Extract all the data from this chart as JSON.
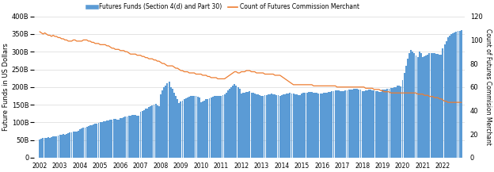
{
  "legend_labels": [
    "Futures Funds (Section 4(d) and Part 30)",
    "Count of Futures Commission Merchant"
  ],
  "bar_color": "#5b9bd5",
  "line_color": "#ed7d31",
  "ylabel_left": "Future Funds in US Dollars",
  "ylabel_right": "Count of Futures Commision Merchant",
  "ylim_left": [
    0,
    400
  ],
  "ylim_right": [
    0,
    120
  ],
  "yticks_left": [
    0,
    50,
    100,
    150,
    200,
    250,
    300,
    350,
    400
  ],
  "ytick_labels_left": [
    "0",
    "50B",
    "100B",
    "150B",
    "200B",
    "250B",
    "300B",
    "350B",
    "400B"
  ],
  "yticks_right": [
    0,
    20,
    40,
    60,
    80,
    100,
    120
  ],
  "background_color": "#ffffff",
  "grid_color": "#d9d9d9",
  "xtick_years": [
    2002,
    2003,
    2004,
    2005,
    2006,
    2007,
    2008,
    2009,
    2010,
    2011,
    2012,
    2013,
    2014,
    2015,
    2016,
    2017,
    2018,
    2019,
    2020,
    2021,
    2022
  ],
  "monthly_bar_x": [
    2002.0,
    2002.083,
    2002.167,
    2002.25,
    2002.333,
    2002.417,
    2002.5,
    2002.583,
    2002.667,
    2002.75,
    2002.833,
    2002.917,
    2003.0,
    2003.083,
    2003.167,
    2003.25,
    2003.333,
    2003.417,
    2003.5,
    2003.583,
    2003.667,
    2003.75,
    2003.833,
    2003.917,
    2004.0,
    2004.083,
    2004.167,
    2004.25,
    2004.333,
    2004.417,
    2004.5,
    2004.583,
    2004.667,
    2004.75,
    2004.833,
    2004.917,
    2005.0,
    2005.083,
    2005.167,
    2005.25,
    2005.333,
    2005.417,
    2005.5,
    2005.583,
    2005.667,
    2005.75,
    2005.833,
    2005.917,
    2006.0,
    2006.083,
    2006.167,
    2006.25,
    2006.333,
    2006.417,
    2006.5,
    2006.583,
    2006.667,
    2006.75,
    2006.833,
    2006.917,
    2007.0,
    2007.083,
    2007.167,
    2007.25,
    2007.333,
    2007.417,
    2007.5,
    2007.583,
    2007.667,
    2007.75,
    2007.833,
    2007.917,
    2008.0,
    2008.083,
    2008.167,
    2008.25,
    2008.333,
    2008.417,
    2008.5,
    2008.583,
    2008.667,
    2008.75,
    2008.833,
    2008.917,
    2009.0,
    2009.083,
    2009.167,
    2009.25,
    2009.333,
    2009.417,
    2009.5,
    2009.583,
    2009.667,
    2009.75,
    2009.833,
    2009.917,
    2010.0,
    2010.083,
    2010.167,
    2010.25,
    2010.333,
    2010.417,
    2010.5,
    2010.583,
    2010.667,
    2010.75,
    2010.833,
    2010.917,
    2011.0,
    2011.083,
    2011.167,
    2011.25,
    2011.333,
    2011.417,
    2011.5,
    2011.583,
    2011.667,
    2011.75,
    2011.833,
    2011.917,
    2012.0,
    2012.083,
    2012.167,
    2012.25,
    2012.333,
    2012.417,
    2012.5,
    2012.583,
    2012.667,
    2012.75,
    2012.833,
    2012.917,
    2013.0,
    2013.083,
    2013.167,
    2013.25,
    2013.333,
    2013.417,
    2013.5,
    2013.583,
    2013.667,
    2013.75,
    2013.833,
    2013.917,
    2014.0,
    2014.083,
    2014.167,
    2014.25,
    2014.333,
    2014.417,
    2014.5,
    2014.583,
    2014.667,
    2014.75,
    2014.833,
    2014.917,
    2015.0,
    2015.083,
    2015.167,
    2015.25,
    2015.333,
    2015.417,
    2015.5,
    2015.583,
    2015.667,
    2015.75,
    2015.833,
    2015.917,
    2016.0,
    2016.083,
    2016.167,
    2016.25,
    2016.333,
    2016.417,
    2016.5,
    2016.583,
    2016.667,
    2016.75,
    2016.833,
    2016.917,
    2017.0,
    2017.083,
    2017.167,
    2017.25,
    2017.333,
    2017.417,
    2017.5,
    2017.583,
    2017.667,
    2017.75,
    2017.833,
    2017.917,
    2018.0,
    2018.083,
    2018.167,
    2018.25,
    2018.333,
    2018.417,
    2018.5,
    2018.583,
    2018.667,
    2018.75,
    2018.833,
    2018.917,
    2019.0,
    2019.083,
    2019.167,
    2019.25,
    2019.333,
    2019.417,
    2019.5,
    2019.583,
    2019.667,
    2019.75,
    2019.833,
    2019.917,
    2020.0,
    2020.083,
    2020.167,
    2020.25,
    2020.333,
    2020.417,
    2020.5,
    2020.583,
    2020.667,
    2020.75,
    2020.833,
    2020.917,
    2021.0,
    2021.083,
    2021.167,
    2021.25,
    2021.333,
    2021.417,
    2021.5,
    2021.583,
    2021.667,
    2021.75,
    2021.833,
    2021.917,
    2022.0,
    2022.083,
    2022.167,
    2022.25,
    2022.333,
    2022.417,
    2022.5,
    2022.583,
    2022.667,
    2022.75,
    2022.833,
    2022.917
  ],
  "monthly_bar_y": [
    52,
    54,
    55,
    57,
    56,
    58,
    57,
    59,
    60,
    61,
    60,
    62,
    64,
    65,
    67,
    66,
    68,
    70,
    71,
    72,
    73,
    74,
    75,
    76,
    80,
    82,
    85,
    86,
    88,
    90,
    92,
    93,
    95,
    96,
    97,
    98,
    100,
    101,
    103,
    104,
    105,
    106,
    107,
    108,
    109,
    110,
    108,
    107,
    112,
    113,
    115,
    116,
    117,
    118,
    119,
    120,
    121,
    120,
    119,
    118,
    130,
    132,
    135,
    138,
    140,
    143,
    145,
    148,
    150,
    152,
    148,
    145,
    180,
    190,
    200,
    205,
    210,
    215,
    200,
    195,
    185,
    175,
    165,
    155,
    160,
    162,
    165,
    168,
    170,
    172,
    174,
    175,
    176,
    174,
    172,
    170,
    158,
    160,
    162,
    165,
    167,
    168,
    170,
    172,
    174,
    175,
    176,
    175,
    175,
    178,
    180,
    185,
    190,
    195,
    200,
    205,
    208,
    205,
    200,
    195,
    182,
    183,
    185,
    186,
    187,
    188,
    185,
    183,
    181,
    180,
    179,
    178,
    175,
    176,
    177,
    178,
    179,
    180,
    181,
    180,
    179,
    178,
    177,
    176,
    178,
    179,
    180,
    181,
    182,
    183,
    182,
    181,
    180,
    179,
    178,
    177,
    182,
    183,
    184,
    185,
    186,
    187,
    186,
    185,
    184,
    183,
    182,
    181,
    182,
    183,
    184,
    185,
    186,
    187,
    188,
    189,
    190,
    191,
    190,
    189,
    188,
    189,
    190,
    191,
    192,
    193,
    194,
    195,
    196,
    195,
    194,
    193,
    188,
    189,
    190,
    191,
    192,
    193,
    191,
    190,
    189,
    188,
    187,
    186,
    192,
    193,
    194,
    195,
    196,
    197,
    198,
    199,
    200,
    205,
    203,
    202,
    220,
    240,
    260,
    280,
    295,
    305,
    300,
    295,
    290,
    285,
    300,
    295,
    285,
    288,
    290,
    292,
    295,
    297,
    296,
    295,
    294,
    293,
    292,
    291,
    310,
    320,
    330,
    340,
    345,
    350,
    352,
    354,
    356,
    358,
    360,
    362
  ],
  "fcm_monthly_x": [
    2002.0,
    2002.083,
    2002.167,
    2002.25,
    2002.333,
    2002.417,
    2002.5,
    2002.583,
    2002.667,
    2002.75,
    2002.833,
    2002.917,
    2003.0,
    2003.083,
    2003.167,
    2003.25,
    2003.333,
    2003.417,
    2003.5,
    2003.583,
    2003.667,
    2003.75,
    2003.833,
    2003.917,
    2004.0,
    2004.083,
    2004.167,
    2004.25,
    2004.333,
    2004.417,
    2004.5,
    2004.583,
    2004.667,
    2004.75,
    2004.833,
    2004.917,
    2005.0,
    2005.083,
    2005.167,
    2005.25,
    2005.333,
    2005.417,
    2005.5,
    2005.583,
    2005.667,
    2005.75,
    2005.833,
    2005.917,
    2006.0,
    2006.083,
    2006.167,
    2006.25,
    2006.333,
    2006.417,
    2006.5,
    2006.583,
    2006.667,
    2006.75,
    2006.833,
    2006.917,
    2007.0,
    2007.083,
    2007.167,
    2007.25,
    2007.333,
    2007.417,
    2007.5,
    2007.583,
    2007.667,
    2007.75,
    2007.833,
    2007.917,
    2008.0,
    2008.083,
    2008.167,
    2008.25,
    2008.333,
    2008.417,
    2008.5,
    2008.583,
    2008.667,
    2008.75,
    2008.833,
    2008.917,
    2009.0,
    2009.083,
    2009.167,
    2009.25,
    2009.333,
    2009.417,
    2009.5,
    2009.583,
    2009.667,
    2009.75,
    2009.833,
    2009.917,
    2010.0,
    2010.083,
    2010.167,
    2010.25,
    2010.333,
    2010.417,
    2010.5,
    2010.583,
    2010.667,
    2010.75,
    2010.833,
    2010.917,
    2011.0,
    2011.083,
    2011.167,
    2011.25,
    2011.333,
    2011.417,
    2011.5,
    2011.583,
    2011.667,
    2011.75,
    2011.833,
    2011.917,
    2012.0,
    2012.083,
    2012.167,
    2012.25,
    2012.333,
    2012.417,
    2012.5,
    2012.583,
    2012.667,
    2012.75,
    2012.833,
    2012.917,
    2013.0,
    2013.083,
    2013.167,
    2013.25,
    2013.333,
    2013.417,
    2013.5,
    2013.583,
    2013.667,
    2013.75,
    2013.833,
    2013.917,
    2014.0,
    2014.083,
    2014.167,
    2014.25,
    2014.333,
    2014.417,
    2014.5,
    2014.583,
    2014.667,
    2014.75,
    2014.833,
    2014.917,
    2015.0,
    2015.083,
    2015.167,
    2015.25,
    2015.333,
    2015.417,
    2015.5,
    2015.583,
    2015.667,
    2015.75,
    2015.833,
    2015.917,
    2016.0,
    2016.083,
    2016.167,
    2016.25,
    2016.333,
    2016.417,
    2016.5,
    2016.583,
    2016.667,
    2016.75,
    2016.833,
    2016.917,
    2017.0,
    2017.083,
    2017.167,
    2017.25,
    2017.333,
    2017.417,
    2017.5,
    2017.583,
    2017.667,
    2017.75,
    2017.833,
    2017.917,
    2018.0,
    2018.083,
    2018.167,
    2018.25,
    2018.333,
    2018.417,
    2018.5,
    2018.583,
    2018.667,
    2018.75,
    2018.833,
    2018.917,
    2019.0,
    2019.083,
    2019.167,
    2019.25,
    2019.333,
    2019.417,
    2019.5,
    2019.583,
    2019.667,
    2019.75,
    2019.833,
    2019.917,
    2020.0,
    2020.083,
    2020.167,
    2020.25,
    2020.333,
    2020.417,
    2020.5,
    2020.583,
    2020.667,
    2020.75,
    2020.833,
    2020.917,
    2021.0,
    2021.083,
    2021.167,
    2021.25,
    2021.333,
    2021.417,
    2021.5,
    2021.583,
    2021.667,
    2021.75,
    2021.833,
    2021.917,
    2022.0,
    2022.083,
    2022.167,
    2022.25,
    2022.333,
    2022.417,
    2022.5,
    2022.583,
    2022.667,
    2022.75,
    2022.833,
    2022.917
  ],
  "fcm_monthly_y": [
    107,
    106,
    105,
    106,
    105,
    104,
    104,
    103,
    104,
    103,
    103,
    102,
    102,
    101,
    101,
    100,
    100,
    99,
    99,
    99,
    100,
    100,
    99,
    99,
    99,
    99,
    100,
    100,
    100,
    99,
    99,
    98,
    98,
    97,
    97,
    97,
    96,
    96,
    96,
    96,
    95,
    95,
    94,
    93,
    93,
    92,
    92,
    92,
    91,
    91,
    91,
    90,
    90,
    89,
    88,
    88,
    88,
    88,
    87,
    87,
    87,
    86,
    86,
    85,
    85,
    84,
    84,
    84,
    83,
    83,
    82,
    82,
    81,
    80,
    80,
    79,
    78,
    78,
    78,
    78,
    77,
    76,
    76,
    75,
    74,
    74,
    73,
    73,
    73,
    72,
    72,
    72,
    72,
    71,
    71,
    71,
    71,
    70,
    70,
    70,
    69,
    69,
    68,
    68,
    68,
    68,
    67,
    67,
    67,
    67,
    67,
    68,
    69,
    70,
    71,
    72,
    73,
    73,
    72,
    72,
    73,
    73,
    73,
    74,
    74,
    74,
    73,
    73,
    73,
    72,
    72,
    72,
    72,
    72,
    71,
    71,
    71,
    71,
    71,
    71,
    70,
    70,
    70,
    70,
    69,
    68,
    67,
    66,
    65,
    64,
    63,
    62,
    62,
    62,
    62,
    62,
    62,
    62,
    62,
    62,
    62,
    62,
    62,
    61,
    61,
    61,
    61,
    61,
    61,
    61,
    61,
    61,
    61,
    61,
    61,
    61,
    61,
    60,
    60,
    60,
    60,
    60,
    60,
    60,
    60,
    60,
    60,
    60,
    60,
    60,
    60,
    60,
    60,
    60,
    59,
    59,
    59,
    59,
    59,
    58,
    58,
    58,
    58,
    57,
    57,
    56,
    56,
    56,
    56,
    55,
    55,
    55,
    55,
    55,
    55,
    55,
    55,
    55,
    55,
    55,
    55,
    55,
    55,
    55,
    55,
    54,
    54,
    54,
    54,
    53,
    53,
    53,
    52,
    52,
    52,
    51,
    51,
    51,
    50,
    50,
    49,
    48,
    48,
    47,
    47,
    47,
    47,
    47,
    47,
    47,
    47,
    47
  ]
}
